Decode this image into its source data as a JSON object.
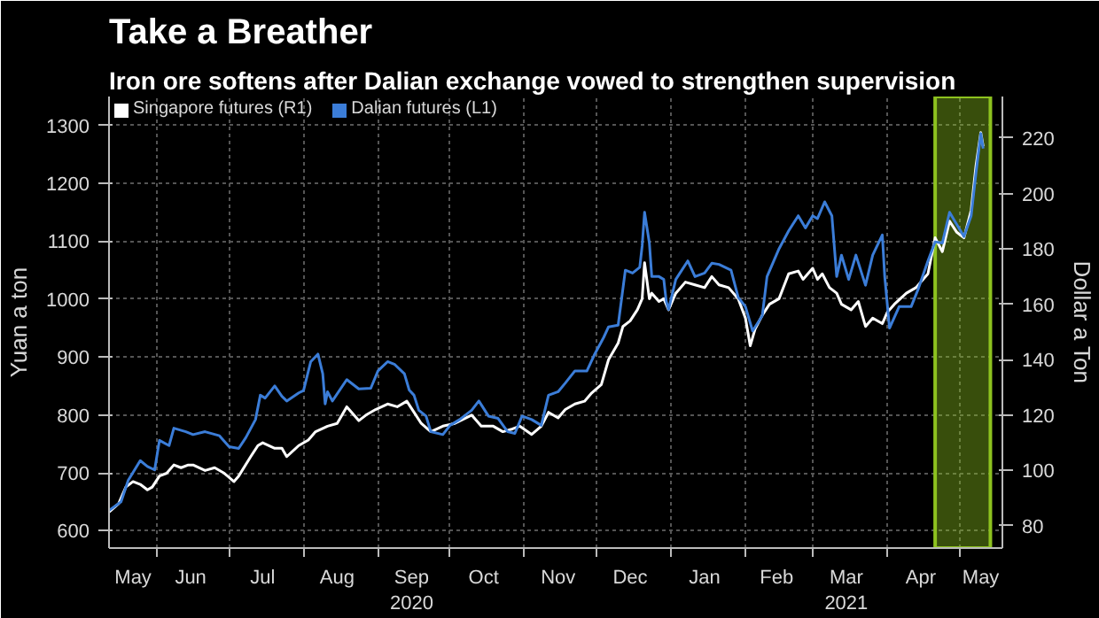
{
  "chart_data": {
    "type": "line",
    "title": "Take a Breather",
    "subtitle": "Iron ore softens after Dalian exchange vowed to strengthen supervision",
    "ylabel": "Yuan a ton",
    "y2label": "Dollar a Ton",
    "xlim": [
      "2020-05-12",
      "2021-05-19"
    ],
    "xticks": [
      {
        "value": "2020-05-22",
        "label": "May"
      },
      {
        "value": "2020-06-15",
        "label": "Jun"
      },
      {
        "value": "2020-07-15",
        "label": "Jul"
      },
      {
        "value": "2020-08-15",
        "label": "Aug"
      },
      {
        "value": "2020-09-15",
        "label": "Sep\n2020"
      },
      {
        "value": "2020-10-15",
        "label": "Oct"
      },
      {
        "value": "2020-11-15",
        "label": "Nov"
      },
      {
        "value": "2020-12-15",
        "label": "Dec"
      },
      {
        "value": "2021-01-15",
        "label": "Jan"
      },
      {
        "value": "2021-02-14",
        "label": "Feb"
      },
      {
        "value": "2021-03-15",
        "label": "Mar\n2021"
      },
      {
        "value": "2021-04-15",
        "label": "Apr"
      },
      {
        "value": "2021-05-10",
        "label": "May"
      },
      {
        "value": "2020-06-01",
        "label": null
      },
      {
        "value": "2020-07-01",
        "label": null
      },
      {
        "value": "2020-08-01",
        "label": null
      },
      {
        "value": "2020-09-01",
        "label": null
      },
      {
        "value": "2020-10-01",
        "label": null
      },
      {
        "value": "2020-11-01",
        "label": null
      },
      {
        "value": "2020-12-01",
        "label": null
      },
      {
        "value": "2021-01-01",
        "label": null
      },
      {
        "value": "2021-02-01",
        "label": null
      },
      {
        "value": "2021-03-01",
        "label": null
      },
      {
        "value": "2021-04-01",
        "label": null
      },
      {
        "value": "2021-05-01",
        "label": null
      }
    ],
    "ylim": [
      570,
      1350
    ],
    "yticks": [
      600,
      700,
      800,
      900,
      1000,
      1100,
      1200,
      1300
    ],
    "y2lim": [
      72,
      235
    ],
    "y2ticks": [
      80,
      100,
      120,
      140,
      160,
      180,
      200,
      220
    ],
    "grid": true,
    "legend": "top left",
    "line_style": "solid",
    "bands": [
      {
        "axis": "x",
        "from": "2021-04-21",
        "to": "2021-05-14",
        "label": null,
        "color": "#8dc21f"
      }
    ],
    "series": [
      {
        "name": "Singapore futures (R1)",
        "color": "#ffffff",
        "axis": "y2",
        "x": [
          "2020-05-12",
          "2020-05-16",
          "2020-05-19",
          "2020-05-22",
          "2020-05-25",
          "2020-05-28",
          "2020-05-30",
          "2020-06-02",
          "2020-06-05",
          "2020-06-08",
          "2020-06-11",
          "2020-06-14",
          "2020-06-16",
          "2020-06-21",
          "2020-06-25",
          "2020-06-29",
          "2020-07-03",
          "2020-07-05",
          "2020-07-10",
          "2020-07-13",
          "2020-07-15",
          "2020-07-20",
          "2020-07-23",
          "2020-07-25",
          "2020-07-30",
          "2020-08-03",
          "2020-08-06",
          "2020-08-11",
          "2020-08-15",
          "2020-08-19",
          "2020-08-24",
          "2020-08-27",
          "2020-08-31",
          "2020-09-05",
          "2020-09-09",
          "2020-09-13",
          "2020-09-16",
          "2020-09-19",
          "2020-09-23",
          "2020-09-28",
          "2020-10-03",
          "2020-10-10",
          "2020-10-14",
          "2020-10-19",
          "2020-10-23",
          "2020-10-27",
          "2020-10-30",
          "2020-11-04",
          "2020-11-08",
          "2020-11-11",
          "2020-11-15",
          "2020-11-18",
          "2020-11-22",
          "2020-11-26",
          "2020-11-29",
          "2020-12-03",
          "2020-12-06",
          "2020-12-10",
          "2020-12-12",
          "2020-12-15",
          "2020-12-18",
          "2020-12-20",
          "2020-12-21",
          "2020-12-23",
          "2020-12-24",
          "2020-12-27",
          "2020-12-29",
          "2020-12-31",
          "2021-01-03",
          "2021-01-07",
          "2021-01-11",
          "2021-01-15",
          "2021-01-18",
          "2021-01-21",
          "2021-01-25",
          "2021-01-29",
          "2021-02-01",
          "2021-02-03",
          "2021-02-05",
          "2021-02-08",
          "2021-02-11",
          "2021-02-15",
          "2021-02-19",
          "2021-02-23",
          "2021-02-25",
          "2021-03-01",
          "2021-03-03",
          "2021-03-05",
          "2021-03-08",
          "2021-03-11",
          "2021-03-13",
          "2021-03-17",
          "2021-03-20",
          "2021-03-23",
          "2021-03-26",
          "2021-03-30",
          "2021-04-01",
          "2021-04-04",
          "2021-04-09",
          "2021-04-13",
          "2021-04-18",
          "2021-04-21",
          "2021-04-24",
          "2021-04-27",
          "2021-04-30",
          "2021-05-03",
          "2021-05-06",
          "2021-05-08",
          "2021-05-10",
          "2021-05-11"
        ],
        "values": [
          85,
          88,
          94,
          96,
          95,
          93,
          94,
          98,
          99,
          102,
          101,
          102,
          102,
          100,
          101,
          99,
          96,
          98,
          105,
          109,
          110,
          108,
          108,
          105,
          109,
          111,
          114,
          116,
          117,
          123,
          118,
          120,
          122,
          124,
          123,
          125,
          121,
          117,
          114,
          116,
          117,
          120,
          116,
          116,
          114,
          115,
          116,
          113,
          116,
          121,
          119,
          122,
          124,
          125,
          128,
          131,
          140,
          146,
          152,
          154,
          158,
          162,
          175,
          162,
          164,
          161,
          162,
          158,
          164,
          168,
          167,
          166,
          170,
          167,
          166,
          162,
          155,
          145,
          151,
          156,
          160,
          162,
          171,
          172,
          169,
          173,
          169,
          171,
          166,
          164,
          160,
          158,
          161,
          152,
          155,
          153,
          157,
          160,
          164,
          166,
          171,
          184,
          179,
          190,
          186,
          184,
          194,
          210,
          222,
          217
        ]
      },
      {
        "name": "Dalian futures (L1)",
        "color": "#3b7dd8",
        "x": [
          "2020-05-12",
          "2020-05-17",
          "2020-05-20",
          "2020-05-25",
          "2020-05-28",
          "2020-05-31",
          "2020-06-02",
          "2020-06-06",
          "2020-06-08",
          "2020-06-13",
          "2020-06-16",
          "2020-06-21",
          "2020-06-27",
          "2020-07-01",
          "2020-07-05",
          "2020-07-08",
          "2020-07-12",
          "2020-07-14",
          "2020-07-16",
          "2020-07-20",
          "2020-07-23",
          "2020-07-25",
          "2020-07-30",
          "2020-08-01",
          "2020-08-04",
          "2020-08-07",
          "2020-08-09",
          "2020-08-10",
          "2020-08-11",
          "2020-08-13",
          "2020-08-19",
          "2020-08-24",
          "2020-08-29",
          "2020-09-01",
          "2020-09-05",
          "2020-09-08",
          "2020-09-12",
          "2020-09-14",
          "2020-09-16",
          "2020-09-18",
          "2020-09-21",
          "2020-09-23",
          "2020-09-28",
          "2020-10-01",
          "2020-10-05",
          "2020-10-10",
          "2020-10-13",
          "2020-10-17",
          "2020-10-21",
          "2020-10-25",
          "2020-10-28",
          "2020-10-31",
          "2020-11-04",
          "2020-11-08",
          "2020-11-11",
          "2020-11-15",
          "2020-11-18",
          "2020-11-22",
          "2020-11-27",
          "2020-11-30",
          "2020-12-04",
          "2020-12-06",
          "2020-12-10",
          "2020-12-13",
          "2020-12-16",
          "2020-12-19",
          "2020-12-20",
          "2020-12-21",
          "2020-12-23",
          "2020-12-24",
          "2020-12-27",
          "2020-12-29",
          "2020-12-30",
          "2020-12-31",
          "2021-01-03",
          "2021-01-08",
          "2021-01-11",
          "2021-01-15",
          "2021-01-18",
          "2021-01-21",
          "2021-01-26",
          "2021-01-29",
          "2021-02-01",
          "2021-02-04",
          "2021-02-08",
          "2021-02-10",
          "2021-02-15",
          "2021-02-19",
          "2021-02-23",
          "2021-02-26",
          "2021-03-01",
          "2021-03-03",
          "2021-03-06",
          "2021-03-09",
          "2021-03-11",
          "2021-03-13",
          "2021-03-16",
          "2021-03-19",
          "2021-03-23",
          "2021-03-26",
          "2021-03-30",
          "2021-03-31",
          "2021-04-02",
          "2021-04-06",
          "2021-04-11",
          "2021-04-14",
          "2021-04-18",
          "2021-04-21",
          "2021-04-24",
          "2021-04-27",
          "2021-04-30",
          "2021-05-03",
          "2021-05-06",
          "2021-05-08",
          "2021-05-10",
          "2021-05-11"
        ],
        "values": [
          635,
          650,
          687,
          721,
          711,
          705,
          756,
          747,
          777,
          771,
          766,
          771,
          764,
          745,
          742,
          761,
          792,
          834,
          829,
          850,
          832,
          824,
          838,
          842,
          892,
          905,
          871,
          819,
          840,
          824,
          861,
          845,
          846,
          876,
          892,
          887,
          871,
          843,
          834,
          808,
          798,
          771,
          766,
          782,
          792,
          808,
          824,
          798,
          794,
          771,
          768,
          798,
          792,
          782,
          834,
          840,
          855,
          876,
          876,
          903,
          934,
          952,
          955,
          1050,
          1045,
          1055,
          1092,
          1150,
          1097,
          1039,
          1039,
          1034,
          997,
          982,
          1034,
          1066,
          1039,
          1045,
          1062,
          1060,
          1050,
          1003,
          987,
          945,
          971,
          1039,
          1087,
          1118,
          1144,
          1123,
          1144,
          1139,
          1168,
          1144,
          1039,
          1076,
          1034,
          1076,
          1024,
          1076,
          1111,
          1039,
          950,
          987,
          987,
          1018,
          1066,
          1099,
          1097,
          1150,
          1129,
          1108,
          1144,
          1218,
          1286,
          1260
        ]
      }
    ]
  }
}
